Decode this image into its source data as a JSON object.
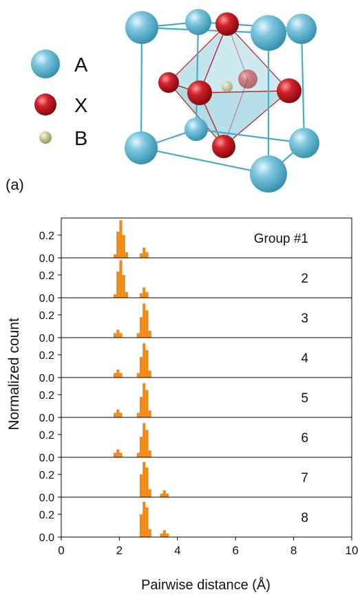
{
  "panel_a": {
    "panel_label": "(a)",
    "legend": [
      {
        "label": "A",
        "color": "#5bb6d3"
      },
      {
        "label": "X",
        "color": "#c3141b"
      },
      {
        "label": "B",
        "color": "#c9c79a"
      }
    ]
  },
  "chart_data": {
    "type": "bar",
    "xlabel": "Pairwise distance (Å)",
    "ylabel": "Normalized count",
    "xlim": [
      0,
      10
    ],
    "xticks": [
      0,
      2,
      4,
      6,
      8,
      10
    ],
    "ylim": [
      0,
      0.35
    ],
    "yticks": [
      0.0,
      0.2
    ],
    "bar_color": "#f28a17",
    "bin_width": 0.1,
    "panels": [
      {
        "label": "Group #1",
        "bins": [
          [
            1.85,
            0.03
          ],
          [
            1.95,
            0.23
          ],
          [
            2.05,
            0.33
          ],
          [
            2.15,
            0.2
          ],
          [
            2.25,
            0.05
          ],
          [
            2.75,
            0.04
          ],
          [
            2.85,
            0.09
          ],
          [
            2.95,
            0.05
          ]
        ]
      },
      {
        "label": "2",
        "bins": [
          [
            1.85,
            0.03
          ],
          [
            1.95,
            0.23
          ],
          [
            2.05,
            0.33
          ],
          [
            2.15,
            0.2
          ],
          [
            2.25,
            0.05
          ],
          [
            2.75,
            0.04
          ],
          [
            2.85,
            0.09
          ],
          [
            2.95,
            0.05
          ]
        ]
      },
      {
        "label": "3",
        "bins": [
          [
            1.85,
            0.04
          ],
          [
            1.95,
            0.07
          ],
          [
            2.05,
            0.04
          ],
          [
            2.65,
            0.04
          ],
          [
            2.75,
            0.18
          ],
          [
            2.85,
            0.3
          ],
          [
            2.95,
            0.24
          ],
          [
            3.05,
            0.06
          ]
        ]
      },
      {
        "label": "4",
        "bins": [
          [
            1.85,
            0.04
          ],
          [
            1.95,
            0.07
          ],
          [
            2.05,
            0.04
          ],
          [
            2.65,
            0.04
          ],
          [
            2.75,
            0.18
          ],
          [
            2.85,
            0.3
          ],
          [
            2.95,
            0.24
          ],
          [
            3.05,
            0.06
          ]
        ]
      },
      {
        "label": "5",
        "bins": [
          [
            1.85,
            0.04
          ],
          [
            1.95,
            0.07
          ],
          [
            2.05,
            0.04
          ],
          [
            2.65,
            0.04
          ],
          [
            2.75,
            0.18
          ],
          [
            2.85,
            0.3
          ],
          [
            2.95,
            0.24
          ],
          [
            3.05,
            0.06
          ]
        ]
      },
      {
        "label": "6",
        "bins": [
          [
            1.85,
            0.04
          ],
          [
            1.95,
            0.07
          ],
          [
            2.05,
            0.04
          ],
          [
            2.65,
            0.04
          ],
          [
            2.75,
            0.18
          ],
          [
            2.85,
            0.3
          ],
          [
            2.95,
            0.24
          ],
          [
            3.05,
            0.06
          ]
        ]
      },
      {
        "label": "7",
        "bins": [
          [
            2.75,
            0.2
          ],
          [
            2.85,
            0.31
          ],
          [
            2.95,
            0.26
          ],
          [
            3.05,
            0.07
          ],
          [
            3.45,
            0.03
          ],
          [
            3.55,
            0.06
          ],
          [
            3.65,
            0.03
          ]
        ]
      },
      {
        "label": "8",
        "bins": [
          [
            2.75,
            0.2
          ],
          [
            2.85,
            0.31
          ],
          [
            2.95,
            0.26
          ],
          [
            3.05,
            0.07
          ],
          [
            3.45,
            0.03
          ],
          [
            3.55,
            0.06
          ],
          [
            3.65,
            0.03
          ]
        ]
      }
    ]
  }
}
